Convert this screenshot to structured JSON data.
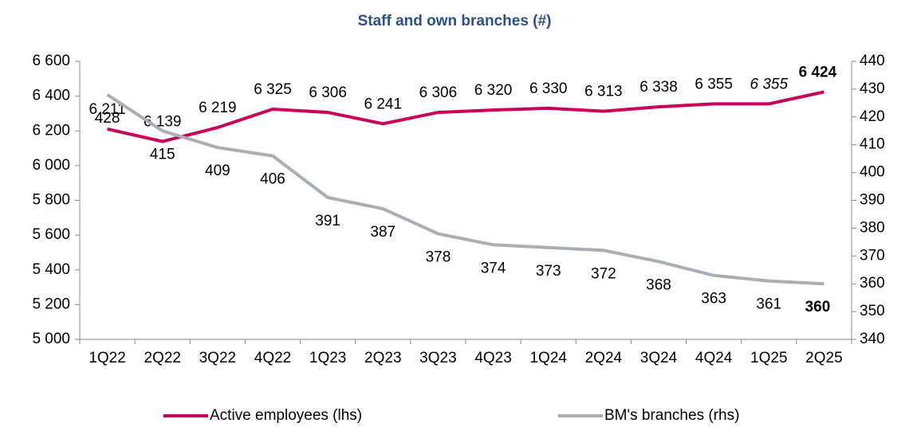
{
  "chart_data": {
    "type": "line",
    "title": "Staff and own branches (#)",
    "categories": [
      "1Q22",
      "2Q22",
      "3Q22",
      "4Q22",
      "1Q23",
      "2Q23",
      "3Q23",
      "4Q23",
      "1Q24",
      "2Q24",
      "3Q24",
      "4Q24",
      "1Q25",
      "2Q25"
    ],
    "series": [
      {
        "name": "Active employees (lhs)",
        "color": "#c8005a",
        "axis": "y",
        "values": [
          6211,
          6139,
          6219,
          6325,
          6306,
          6241,
          6306,
          6320,
          6330,
          6313,
          6338,
          6355,
          6355,
          6424
        ],
        "value_labels": [
          "6 211",
          "6 139",
          "6 219",
          "6 325",
          "6 306",
          "6 241",
          "6 306",
          "6 320",
          "6 330",
          "6 313",
          "6 338",
          "6 355",
          "6 355",
          "6 424"
        ]
      },
      {
        "name": "BM's branches (rhs)",
        "color": "#a7aeb5",
        "axis": "y2",
        "values": [
          428,
          415,
          409,
          406,
          391,
          387,
          378,
          374,
          373,
          372,
          368,
          363,
          361,
          360
        ]
      }
    ],
    "ylim": [
      5000,
      6600
    ],
    "yticks": [
      {
        "value": 5000,
        "label": "5 000"
      },
      {
        "value": 5200,
        "label": "5 200"
      },
      {
        "value": 5400,
        "label": "5 400"
      },
      {
        "value": 5600,
        "label": "5 600"
      },
      {
        "value": 5800,
        "label": "5 800"
      },
      {
        "value": 6000,
        "label": "6 000"
      },
      {
        "value": 6200,
        "label": "6 200"
      },
      {
        "value": 6400,
        "label": "6 400"
      },
      {
        "value": 6600,
        "label": "6 600"
      }
    ],
    "y2lim": [
      340,
      440
    ],
    "y2ticks": [
      340,
      350,
      360,
      370,
      380,
      390,
      400,
      410,
      420,
      430,
      440
    ],
    "legend": "bottom"
  }
}
